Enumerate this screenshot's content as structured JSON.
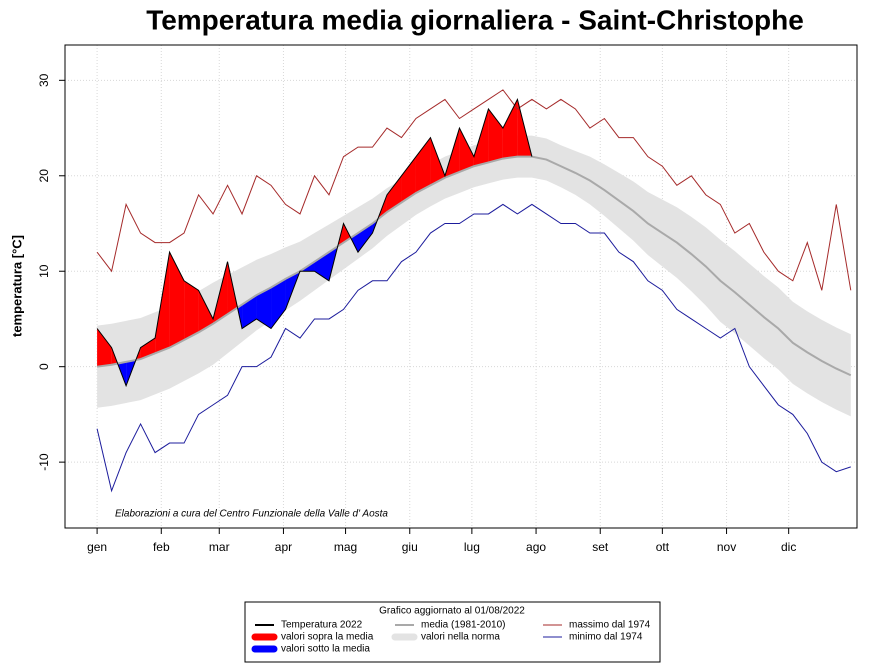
{
  "chart_data": {
    "type": "line",
    "title": "Temperatura media giornaliera - Saint-Christophe",
    "y_label": "temperatura [°C]",
    "annotation": "Elaborazioni a cura del Centro Funzionale della Valle d' Aosta",
    "legend_title": "Grafico aggiornato al 01/08/2022",
    "x": [
      1,
      8,
      15,
      22,
      29,
      36,
      43,
      50,
      57,
      64,
      71,
      78,
      85,
      92,
      99,
      106,
      113,
      120,
      127,
      134,
      141,
      148,
      155,
      162,
      169,
      176,
      183,
      190,
      197,
      204,
      211,
      218,
      225,
      232,
      239,
      246,
      253,
      260,
      267,
      274,
      281,
      288,
      295,
      302,
      309,
      316,
      323,
      330,
      337,
      344,
      351,
      358,
      365
    ],
    "xlim": [
      -14.5,
      368
    ],
    "xticks": [
      {
        "value": 1,
        "label": "gen"
      },
      {
        "value": 32,
        "label": "feb"
      },
      {
        "value": 60,
        "label": "mar"
      },
      {
        "value": 91,
        "label": "apr"
      },
      {
        "value": 121,
        "label": "mag"
      },
      {
        "value": 152,
        "label": "giu"
      },
      {
        "value": 182,
        "label": "lug"
      },
      {
        "value": 213,
        "label": "ago"
      },
      {
        "value": 244,
        "label": "set"
      },
      {
        "value": 274,
        "label": "ott"
      },
      {
        "value": 305,
        "label": "nov"
      },
      {
        "value": 335,
        "label": "dic"
      }
    ],
    "ylim": [
      -16.9,
      33.7
    ],
    "yticks": [
      -10,
      0,
      10,
      20,
      30
    ],
    "grid": true,
    "band": {
      "name": "valori nella norma",
      "color": "#e3e3e3",
      "low": [
        -4.3,
        -4.1,
        -3.8,
        -3.5,
        -2.9,
        -2.3,
        -1.5,
        -0.7,
        0.2,
        1.4,
        2.6,
        3.8,
        4.8,
        5.9,
        6.9,
        8,
        9.1,
        10.2,
        11.3,
        12.4,
        13.7,
        14.8,
        15.9,
        16.8,
        17.6,
        18.2,
        18.8,
        19.2,
        19.6,
        19.8,
        19.8,
        19.5,
        18.8,
        18,
        17,
        15.8,
        14.5,
        13.2,
        11.7,
        10.5,
        9.3,
        7.9,
        6.4,
        4.7,
        3.5,
        2.2,
        0.9,
        -0.3,
        -1.8,
        -2.8,
        -3.7,
        -4.5,
        -5.2
      ],
      "high": [
        4.3,
        4.5,
        4.8,
        5.1,
        5.7,
        6.3,
        7.1,
        7.9,
        8.8,
        9.6,
        10.4,
        11.2,
        11.8,
        12.5,
        13.1,
        14,
        14.9,
        15.8,
        16.7,
        17.6,
        18.7,
        19.6,
        20.5,
        21.2,
        22,
        22.6,
        23.2,
        23.6,
        24,
        24.2,
        24.2,
        23.9,
        23.2,
        22.6,
        22,
        21.2,
        20.3,
        19.4,
        18.3,
        17.5,
        16.7,
        15.7,
        14.6,
        13.3,
        12.1,
        10.8,
        9.5,
        8.3,
        6.8,
        5.8,
        4.9,
        4.1,
        3.4
      ]
    },
    "fill_above": {
      "name": "valori sopra la media",
      "color": "#ff0000"
    },
    "fill_below": {
      "name": "valori sotto la media",
      "color": "#0000ff"
    },
    "series": [
      {
        "name": "Temperatura  2022",
        "color": "#000000",
        "values": [
          4,
          2,
          -2,
          2,
          3,
          12,
          9,
          8,
          5,
          11,
          4,
          5,
          4,
          6,
          10,
          10,
          9,
          15,
          12,
          14,
          18,
          20,
          22,
          24,
          20,
          25,
          22,
          27,
          25,
          28,
          22,
          null,
          null,
          null,
          null,
          null,
          null,
          null,
          null,
          null,
          null,
          null,
          null,
          null,
          null,
          null,
          null,
          null,
          null,
          null,
          null,
          null,
          null
        ]
      },
      {
        "name": "media (1981-2010)",
        "color": "#a9a9a9",
        "values": [
          0,
          0.2,
          0.5,
          0.8,
          1.4,
          2,
          2.8,
          3.6,
          4.5,
          5.5,
          6.5,
          7.5,
          8.3,
          9.2,
          10,
          11,
          12,
          13,
          14,
          15,
          16.2,
          17.2,
          18.2,
          19,
          19.8,
          20.4,
          21,
          21.4,
          21.8,
          22,
          22,
          21.7,
          21,
          20.3,
          19.5,
          18.5,
          17.4,
          16.3,
          15,
          14,
          13,
          11.8,
          10.5,
          9,
          7.8,
          6.5,
          5.2,
          4,
          2.5,
          1.5,
          0.6,
          -0.2,
          -0.9
        ]
      },
      {
        "name": "massimo dal 1974",
        "color": "#a52a2a",
        "values": [
          12,
          10,
          17,
          14,
          13,
          13,
          14,
          18,
          16,
          19,
          16,
          20,
          19,
          17,
          16,
          20,
          18,
          22,
          23,
          23,
          25,
          24,
          26,
          27,
          28,
          26,
          27,
          28,
          29,
          27,
          28,
          27,
          28,
          27,
          25,
          26,
          24,
          24,
          22,
          21,
          19,
          20,
          18,
          17,
          14,
          15,
          12,
          10,
          9,
          13,
          8,
          17,
          8
        ]
      },
      {
        "name": "minimo dal 1974",
        "color": "#1c1c9c",
        "values": [
          -6.5,
          -13,
          -9,
          -6,
          -9,
          -8,
          -8,
          -5,
          -4,
          -3,
          0,
          0,
          1,
          4,
          3,
          5,
          5,
          6,
          8,
          9,
          9,
          11,
          12,
          14,
          15,
          15,
          16,
          16,
          17,
          16,
          17,
          16,
          15,
          15,
          14,
          14,
          12,
          11,
          9,
          8,
          6,
          5,
          4,
          3,
          4,
          0,
          -2,
          -4,
          -5,
          -7,
          -10,
          -11,
          -10.5
        ]
      }
    ]
  }
}
